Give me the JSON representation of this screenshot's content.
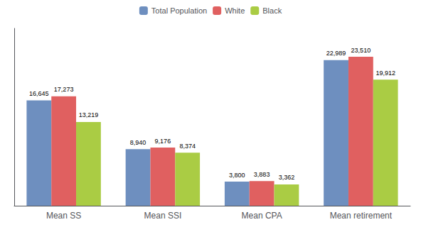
{
  "chart_data": {
    "type": "bar",
    "categories": [
      "Mean SS",
      "Mean SSI",
      "Mean CPA",
      "Mean retirement"
    ],
    "series": [
      {
        "name": "Total Population",
        "color": "#6E8FBF",
        "values": [
          16645,
          8940,
          3800,
          22989
        ],
        "value_labels": [
          "16,645",
          "8,940",
          "3,800",
          "22,989"
        ]
      },
      {
        "name": "White",
        "color": "#E06060",
        "values": [
          17273,
          9176,
          3883,
          23510
        ],
        "value_labels": [
          "17,273",
          "9,176",
          "3,883",
          "23,510"
        ]
      },
      {
        "name": "Black",
        "color": "#AACC44",
        "values": [
          13219,
          8374,
          3362,
          19912
        ],
        "value_labels": [
          "13,219",
          "8,374",
          "3,362",
          "19,912"
        ]
      }
    ],
    "ylim": [
      0,
      28000
    ],
    "grid": false,
    "legend": "top",
    "data_labels": true,
    "tick_labels": "x"
  }
}
